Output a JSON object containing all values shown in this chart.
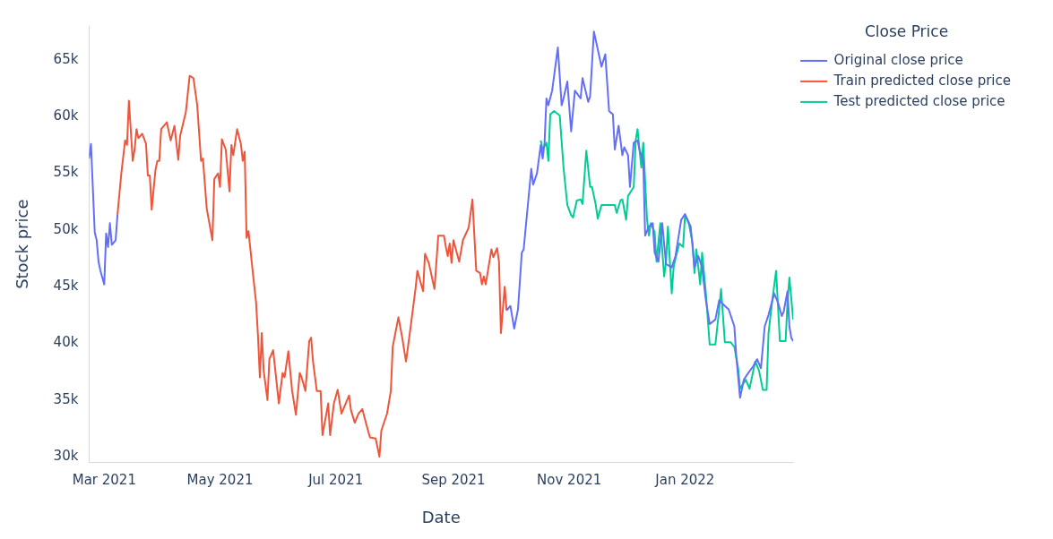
{
  "chart_data": {
    "type": "line",
    "xlabel": "Date",
    "ylabel": "Stock price",
    "legend_title": "Close Price",
    "legend": "top right",
    "xlim": [
      "2021-02-21",
      "2022-02-27"
    ],
    "ylim": [
      29500,
      68000
    ],
    "xticks": [
      {
        "value": "2021-03-01",
        "label": "Mar 2021"
      },
      {
        "value": "2021-05-01",
        "label": "May 2021"
      },
      {
        "value": "2021-07-01",
        "label": "Jul 2021"
      },
      {
        "value": "2021-09-01",
        "label": "Sep 2021"
      },
      {
        "value": "2021-11-01",
        "label": "Nov 2021"
      },
      {
        "value": "2022-01-01",
        "label": "Jan 2022"
      }
    ],
    "yticks": [
      {
        "value": 30000,
        "label": "30k"
      },
      {
        "value": 35000,
        "label": "35k"
      },
      {
        "value": 40000,
        "label": "40k"
      },
      {
        "value": 45000,
        "label": "45k"
      },
      {
        "value": 50000,
        "label": "50k"
      },
      {
        "value": 55000,
        "label": "55k"
      },
      {
        "value": 60000,
        "label": "60k"
      },
      {
        "value": 65000,
        "label": "65k"
      }
    ],
    "series": [
      {
        "name": "Original close price",
        "color": "#636efa",
        "x": [
          "2021-02-21",
          "2021-02-22",
          "2021-02-24",
          "2021-02-25",
          "2021-02-26",
          "2021-02-27",
          "2021-03-01",
          "2021-03-02",
          "2021-03-03",
          "2021-03-04",
          "2021-03-05",
          "2021-03-07",
          "2021-03-08",
          "2021-03-09",
          "2021-09-29",
          "2021-10-01",
          "2021-10-03",
          "2021-10-05",
          "2021-10-07",
          "2021-10-08",
          "2021-10-12",
          "2021-10-13",
          "2021-10-15",
          "2021-10-17",
          "2021-10-18",
          "2021-10-19",
          "2021-10-20",
          "2021-10-21",
          "2021-10-23",
          "2021-10-26",
          "2021-10-28",
          "2021-10-29",
          "2021-10-31",
          "2021-11-02",
          "2021-11-04",
          "2021-11-07",
          "2021-11-08",
          "2021-11-11",
          "2021-11-12",
          "2021-11-14",
          "2021-11-17",
          "2021-11-18",
          "2021-11-20",
          "2021-11-22",
          "2021-11-24",
          "2021-11-25",
          "2021-11-27",
          "2021-11-29",
          "2021-11-30",
          "2021-12-02",
          "2021-12-03",
          "2021-12-05",
          "2021-12-07",
          "2021-12-08",
          "2021-12-10",
          "2021-12-11",
          "2021-12-13",
          "2021-12-15",
          "2021-12-16",
          "2021-12-18",
          "2021-12-20",
          "2021-12-22",
          "2021-12-25",
          "2021-12-27",
          "2021-12-30",
          "2022-01-01",
          "2022-01-04",
          "2022-01-06",
          "2022-01-08",
          "2022-01-10",
          "2022-01-12",
          "2022-01-14",
          "2022-01-17",
          "2022-01-19",
          "2022-01-22",
          "2022-01-24",
          "2022-01-27",
          "2022-01-28",
          "2022-01-30",
          "2022-02-01",
          "2022-02-03",
          "2022-02-06",
          "2022-02-08",
          "2022-02-10",
          "2022-02-12",
          "2022-02-14",
          "2022-02-17",
          "2022-02-19",
          "2022-02-21",
          "2022-02-22",
          "2022-02-24",
          "2022-02-25",
          "2022-02-26",
          "2022-02-27"
        ],
        "values": [
          56300,
          57600,
          49800,
          49100,
          47200,
          46400,
          45200,
          49700,
          48500,
          50600,
          48700,
          49100,
          51400,
          null,
          42900,
          43300,
          41300,
          43000,
          48000,
          48300,
          55400,
          54000,
          55000,
          57500,
          56300,
          57700,
          61600,
          61000,
          62300,
          66100,
          61000,
          61600,
          63100,
          58700,
          62300,
          61600,
          63400,
          61300,
          61800,
          67500,
          65200,
          64400,
          65500,
          60500,
          60200,
          57100,
          59200,
          56600,
          57300,
          56600,
          53800,
          57700,
          57900,
          57100,
          56100,
          49500,
          50300,
          50600,
          48000,
          47200,
          50600,
          47000,
          46700,
          47700,
          50900,
          51400,
          50300,
          46700,
          47700,
          46700,
          43800,
          41700,
          42100,
          43800,
          43300,
          43000,
          41500,
          38900,
          35200,
          36800,
          37300,
          38000,
          38600,
          37800,
          41500,
          42500,
          44400,
          43600,
          42400,
          42800,
          44600,
          41500,
          40500,
          40200
        ]
      },
      {
        "name": "Train predicted close price",
        "color": "#ef553b",
        "x": [
          "2021-03-08",
          "2021-03-10",
          "2021-03-12",
          "2021-03-13",
          "2021-03-14",
          "2021-03-16",
          "2021-03-17",
          "2021-03-18",
          "2021-03-19",
          "2021-03-21",
          "2021-03-23",
          "2021-03-24",
          "2021-03-25",
          "2021-03-26",
          "2021-03-28",
          "2021-03-29",
          "2021-03-30",
          "2021-03-31",
          "2021-04-03",
          "2021-04-05",
          "2021-04-07",
          "2021-04-09",
          "2021-04-10",
          "2021-04-12",
          "2021-04-13",
          "2021-04-15",
          "2021-04-17",
          "2021-04-19",
          "2021-04-21",
          "2021-04-22",
          "2021-04-24",
          "2021-04-27",
          "2021-04-28",
          "2021-04-30",
          "2021-05-01",
          "2021-05-02",
          "2021-05-04",
          "2021-05-06",
          "2021-05-07",
          "2021-05-08",
          "2021-05-10",
          "2021-05-12",
          "2021-05-13",
          "2021-05-14",
          "2021-05-15",
          "2021-05-16",
          "2021-05-18",
          "2021-05-20",
          "2021-05-21",
          "2021-05-22",
          "2021-05-23",
          "2021-05-24",
          "2021-05-26",
          "2021-05-27",
          "2021-05-29",
          "2021-06-01",
          "2021-06-03",
          "2021-06-04",
          "2021-06-06",
          "2021-06-08",
          "2021-06-10",
          "2021-06-12",
          "2021-06-13",
          "2021-06-15",
          "2021-06-17",
          "2021-06-18",
          "2021-06-19",
          "2021-06-21",
          "2021-06-23",
          "2021-06-24",
          "2021-06-27",
          "2021-06-28",
          "2021-06-30",
          "2021-07-02",
          "2021-07-04",
          "2021-07-05",
          "2021-07-08",
          "2021-07-09",
          "2021-07-11",
          "2021-07-13",
          "2021-07-15",
          "2021-07-17",
          "2021-07-19",
          "2021-07-22",
          "2021-07-24",
          "2021-07-25",
          "2021-07-28",
          "2021-07-30",
          "2021-07-31",
          "2021-08-03",
          "2021-08-05",
          "2021-08-07",
          "2021-08-09",
          "2021-08-12",
          "2021-08-13",
          "2021-08-16",
          "2021-08-17",
          "2021-08-19",
          "2021-08-22",
          "2021-08-24",
          "2021-08-27",
          "2021-08-28",
          "2021-08-29",
          "2021-08-30",
          "2021-08-31",
          "2021-09-01",
          "2021-09-04",
          "2021-09-06",
          "2021-09-09",
          "2021-09-11",
          "2021-09-13",
          "2021-09-15",
          "2021-09-16",
          "2021-09-17",
          "2021-09-18",
          "2021-09-21",
          "2021-09-22",
          "2021-09-24",
          "2021-09-25",
          "2021-09-26",
          "2021-09-28",
          "2021-09-29"
        ],
        "values": [
          51400,
          55000,
          57900,
          57500,
          61400,
          56100,
          57100,
          58900,
          58100,
          58500,
          57600,
          54800,
          54800,
          51800,
          55300,
          56100,
          56100,
          58900,
          59500,
          57900,
          59200,
          56200,
          58300,
          59700,
          60400,
          63600,
          63400,
          61000,
          56100,
          56300,
          51900,
          49100,
          54500,
          55000,
          53800,
          58000,
          57100,
          53400,
          57500,
          56600,
          58900,
          57600,
          56100,
          56900,
          49300,
          49900,
          46700,
          43600,
          40700,
          37000,
          40900,
          37600,
          35000,
          38600,
          39400,
          34700,
          37400,
          37000,
          39300,
          35800,
          33700,
          37400,
          37000,
          35800,
          40200,
          40500,
          38400,
          35800,
          35800,
          31900,
          34700,
          31900,
          34700,
          35900,
          33800,
          34200,
          35400,
          34100,
          33000,
          33800,
          34200,
          32900,
          31700,
          31600,
          30000,
          32300,
          33800,
          35800,
          39700,
          42300,
          40500,
          38400,
          40900,
          44800,
          46400,
          44600,
          47900,
          47100,
          44800,
          49500,
          49500,
          48500,
          47700,
          48800,
          47100,
          49100,
          47200,
          49100,
          50200,
          52700,
          46400,
          46200,
          45200,
          45900,
          45200,
          48300,
          47600,
          48400,
          47200,
          40900,
          45000,
          42900
        ]
      },
      {
        "name": "Test predicted close price",
        "color": "#00cc96",
        "x": [
          "2021-10-17",
          "2021-10-18",
          "2021-10-20",
          "2021-10-21",
          "2021-10-22",
          "2021-10-24",
          "2021-10-27",
          "2021-10-29",
          "2021-10-31",
          "2021-11-02",
          "2021-11-03",
          "2021-11-05",
          "2021-11-07",
          "2021-11-08",
          "2021-11-10",
          "2021-11-12",
          "2021-11-13",
          "2021-11-15",
          "2021-11-16",
          "2021-11-18",
          "2021-11-22",
          "2021-11-25",
          "2021-11-26",
          "2021-11-28",
          "2021-11-29",
          "2021-12-01",
          "2021-12-02",
          "2021-12-05",
          "2021-12-06",
          "2021-12-07",
          "2021-12-08",
          "2021-12-09",
          "2021-12-10",
          "2021-12-12",
          "2021-12-13",
          "2021-12-14",
          "2021-12-16",
          "2021-12-17",
          "2021-12-19",
          "2021-12-21",
          "2021-12-22",
          "2021-12-23",
          "2021-12-25",
          "2021-12-26",
          "2021-12-27",
          "2021-12-29",
          "2021-12-31",
          "2022-01-01",
          "2022-01-03",
          "2022-01-05",
          "2022-01-06",
          "2022-01-07",
          "2022-01-09",
          "2022-01-10",
          "2022-01-12",
          "2022-01-14",
          "2022-01-17",
          "2022-01-19",
          "2022-01-20",
          "2022-01-22",
          "2022-01-25",
          "2022-01-27",
          "2022-01-29",
          "2022-01-30",
          "2022-02-02",
          "2022-02-04",
          "2022-02-07",
          "2022-02-09",
          "2022-02-11",
          "2022-02-13",
          "2022-02-14",
          "2022-02-16",
          "2022-02-18",
          "2022-02-20",
          "2022-02-23",
          "2022-02-24",
          "2022-02-25",
          "2022-02-27"
        ],
        "values": [
          57900,
          57100,
          57700,
          56100,
          60200,
          60500,
          60100,
          55500,
          52200,
          51300,
          51100,
          52600,
          52700,
          52300,
          57000,
          53800,
          53800,
          52200,
          51000,
          52200,
          52200,
          52200,
          51500,
          52600,
          52700,
          50900,
          53000,
          53800,
          57900,
          58900,
          57100,
          55500,
          57700,
          50900,
          49500,
          50600,
          49800,
          47200,
          50600,
          45900,
          47200,
          50300,
          44400,
          46700,
          47500,
          48800,
          48500,
          51300,
          50600,
          48800,
          46200,
          48300,
          45200,
          48000,
          44400,
          39900,
          39900,
          43000,
          44800,
          40100,
          40100,
          39700,
          37800,
          36000,
          36800,
          36000,
          38400,
          37600,
          35900,
          35900,
          40900,
          43800,
          46400,
          40200,
          40200,
          43600,
          45800,
          42100
        ]
      }
    ]
  }
}
